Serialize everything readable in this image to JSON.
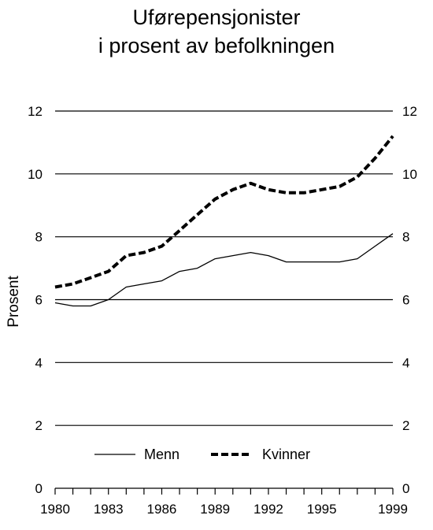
{
  "chart_data": {
    "type": "line",
    "title_lines": [
      "Uførepensjonister",
      "i prosent av befolkningen"
    ],
    "ylabel": "Prosent",
    "xlabel": "",
    "ylim": [
      0,
      12
    ],
    "y_ticks": [
      0,
      2,
      4,
      6,
      8,
      10,
      12
    ],
    "xlim": [
      1980,
      1999
    ],
    "x_tick_labels": [
      "1980",
      "1983",
      "1986",
      "1989",
      "1992",
      "1995",
      "1999"
    ],
    "x_tick_label_values": [
      1980,
      1983,
      1986,
      1989,
      1992,
      1995,
      1999
    ],
    "grid": "horizontal",
    "right_axis_labels": true,
    "legend_placement": "bottom-center",
    "x": [
      1980,
      1981,
      1982,
      1983,
      1984,
      1985,
      1986,
      1987,
      1988,
      1989,
      1990,
      1991,
      1992,
      1993,
      1994,
      1995,
      1996,
      1997,
      1998,
      1999
    ],
    "series": [
      {
        "name": "Menn",
        "style": "solid",
        "color": "#000000",
        "values": [
          5.9,
          5.8,
          5.8,
          6.0,
          6.4,
          6.5,
          6.6,
          6.9,
          7.0,
          7.3,
          7.4,
          7.5,
          7.4,
          7.2,
          7.2,
          7.2,
          7.2,
          7.3,
          7.7,
          8.1
        ]
      },
      {
        "name": "Kvinner",
        "style": "dashed",
        "color": "#000000",
        "values": [
          6.4,
          6.5,
          6.7,
          6.9,
          7.4,
          7.5,
          7.7,
          8.2,
          8.7,
          9.2,
          9.5,
          9.7,
          9.5,
          9.4,
          9.4,
          9.5,
          9.6,
          9.9,
          10.5,
          11.2
        ]
      }
    ]
  }
}
